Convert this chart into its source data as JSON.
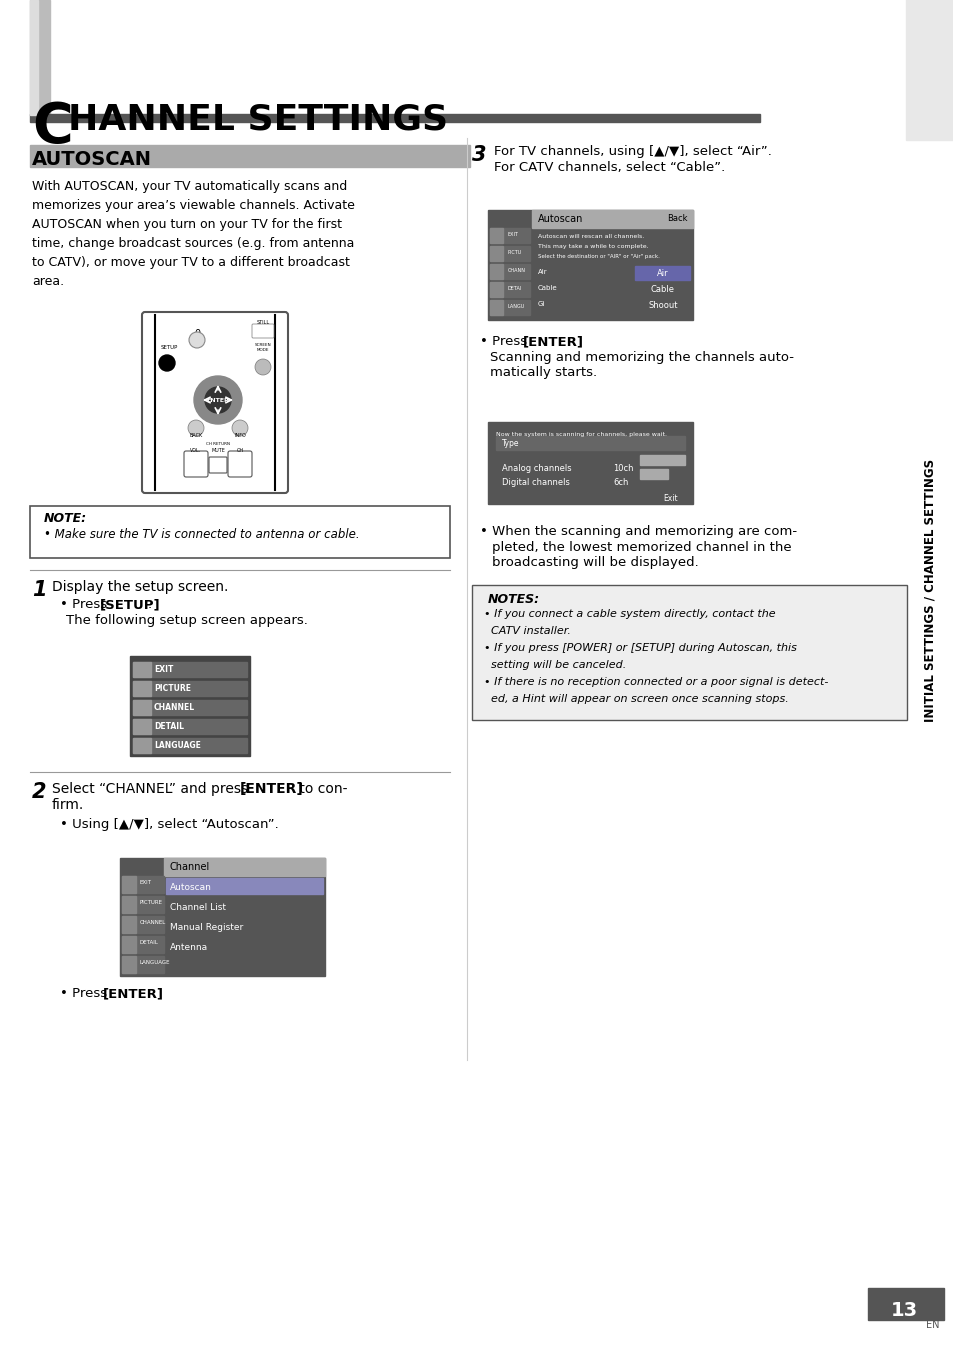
{
  "page_bg": "#ffffff",
  "title_letter": "C",
  "title_text": "HANNEL SETTINGS",
  "section_title": "AUTOSCAN",
  "body_text_1": "With AUTOSCAN, your TV automatically scans and\nmemorizes your area’s viewable channels. Activate\nAUTOSCAN when you turn on your TV for the first\ntime, change broadcast sources (e.g. from antenna\nto CATV), or move your TV to a different broadcast\narea.",
  "note_title": "NOTE:",
  "note_text": "• Make sure the TV is connected to antenna or cable.",
  "step1_num": "1",
  "step1_text": "Display the setup screen.",
  "step1_sub1": "The following setup screen appears.",
  "step2_num": "2",
  "step3_num": "3",
  "notes2_title": "NOTES:",
  "notes2_lines": [
    "• If you connect a cable system directly, contact the",
    "  CATV installer.",
    "• If you press [POWER] or [SETUP] during Autoscan, this",
    "  setting will be canceled.",
    "• If there is no reception connected or a poor signal is detect-",
    "  ed, a Hint will appear on screen once scanning stops."
  ],
  "sidebar_text": "INITIAL SETTINGS / CHANNEL SETTINGS",
  "page_number": "13",
  "page_lang": "EN",
  "header_bar_color": "#555555",
  "section_bar_color": "#aaaaaa",
  "menu_items": [
    "EXIT",
    "PICTURE",
    "CHANNEL",
    "DETAIL",
    "LANGUAGE"
  ],
  "chan_menu_items": [
    "Autoscan",
    "Channel List",
    "Manual Register",
    "Antenna"
  ]
}
